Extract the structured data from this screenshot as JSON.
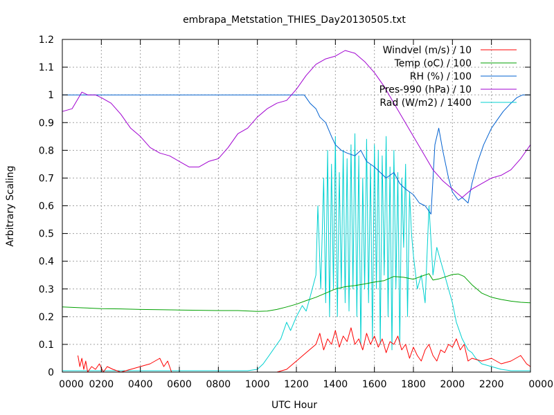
{
  "chart_data": {
    "type": "line",
    "title": "embrapa_Metstation_THIES_Day20130505.txt",
    "xlabel": "UTC Hour",
    "ylabel": "Arbitrary Scaling",
    "xlim": [
      0,
      24
    ],
    "ylim": [
      0,
      1.2
    ],
    "x_tick_labels": [
      "0000",
      "0200",
      "0400",
      "0600",
      "0800",
      "1000",
      "1200",
      "1400",
      "1600",
      "1800",
      "2000",
      "2200",
      "0000"
    ],
    "y_tick_labels": [
      "0",
      "0.1",
      "0.2",
      "0.3",
      "0.4",
      "0.5",
      "0.6",
      "0.7",
      "0.8",
      "0.9",
      "1",
      "1.1",
      "1.2"
    ],
    "grid": true,
    "legend_position": "top-right",
    "series": [
      {
        "name": "Windvel (m/s) / 10",
        "color": "#ff0000",
        "x": [
          0.8,
          0.9,
          1.0,
          1.1,
          1.2,
          1.3,
          1.5,
          1.7,
          1.9,
          2.1,
          2.3,
          2.6,
          3.0,
          3.5,
          4.0,
          4.5,
          5.0,
          5.2,
          5.4,
          5.6,
          6.0,
          10.0,
          11.0,
          11.5,
          12.0,
          12.5,
          13.0,
          13.2,
          13.4,
          13.6,
          13.8,
          14.0,
          14.2,
          14.4,
          14.6,
          14.8,
          15.0,
          15.2,
          15.4,
          15.6,
          15.8,
          16.0,
          16.2,
          16.4,
          16.6,
          16.8,
          17.0,
          17.2,
          17.4,
          17.6,
          17.8,
          18.0,
          18.2,
          18.4,
          18.6,
          18.8,
          19.0,
          19.2,
          19.4,
          19.6,
          19.8,
          20.0,
          20.2,
          20.4,
          20.6,
          20.8,
          21.0,
          21.5,
          22.0,
          22.5,
          23.0,
          23.5,
          23.8,
          24.0
        ],
        "y": [
          0.06,
          0.02,
          0.05,
          0.01,
          0.04,
          0.0,
          0.02,
          0.01,
          0.03,
          0.0,
          0.02,
          0.01,
          0.0,
          0.01,
          0.02,
          0.03,
          0.05,
          0.02,
          0.04,
          0.0,
          0.0,
          0.0,
          0.0,
          0.01,
          0.04,
          0.07,
          0.1,
          0.14,
          0.08,
          0.12,
          0.1,
          0.15,
          0.09,
          0.13,
          0.11,
          0.16,
          0.1,
          0.12,
          0.08,
          0.14,
          0.1,
          0.13,
          0.09,
          0.12,
          0.07,
          0.11,
          0.1,
          0.13,
          0.08,
          0.1,
          0.05,
          0.09,
          0.06,
          0.04,
          0.08,
          0.1,
          0.06,
          0.04,
          0.08,
          0.07,
          0.1,
          0.09,
          0.12,
          0.08,
          0.1,
          0.04,
          0.05,
          0.04,
          0.05,
          0.03,
          0.04,
          0.06,
          0.03,
          0.02
        ]
      },
      {
        "name": "Temp (oC) / 100",
        "color": "#00a000",
        "x": [
          0.0,
          1.0,
          2.0,
          3.0,
          4.0,
          5.0,
          6.0,
          7.0,
          8.0,
          9.0,
          10.0,
          10.5,
          11.0,
          11.5,
          12.0,
          12.5,
          13.0,
          13.5,
          14.0,
          14.5,
          15.0,
          15.5,
          16.0,
          16.5,
          17.0,
          17.5,
          18.0,
          18.5,
          18.8,
          19.0,
          19.3,
          19.7,
          20.0,
          20.3,
          20.6,
          21.0,
          21.5,
          22.0,
          22.5,
          23.0,
          23.5,
          24.0
        ],
        "y": [
          0.235,
          0.232,
          0.229,
          0.228,
          0.226,
          0.225,
          0.224,
          0.223,
          0.222,
          0.222,
          0.219,
          0.22,
          0.226,
          0.235,
          0.245,
          0.258,
          0.27,
          0.285,
          0.3,
          0.308,
          0.312,
          0.318,
          0.325,
          0.33,
          0.345,
          0.342,
          0.335,
          0.348,
          0.355,
          0.332,
          0.336,
          0.345,
          0.352,
          0.354,
          0.345,
          0.315,
          0.285,
          0.27,
          0.262,
          0.256,
          0.252,
          0.25
        ]
      },
      {
        "name": "RH (%) / 100",
        "color": "#0060d0",
        "x": [
          0.0,
          2.0,
          4.0,
          6.0,
          8.0,
          10.0,
          11.0,
          12.0,
          12.4,
          12.7,
          13.0,
          13.2,
          13.5,
          13.8,
          14.0,
          14.3,
          14.6,
          15.0,
          15.3,
          15.6,
          16.0,
          16.3,
          16.6,
          17.0,
          17.3,
          17.6,
          18.0,
          18.3,
          18.6,
          18.9,
          19.1,
          19.3,
          19.5,
          19.8,
          20.0,
          20.3,
          20.5,
          20.8,
          21.0,
          21.3,
          21.6,
          22.0,
          22.3,
          22.6,
          23.0,
          23.3,
          23.6,
          24.0
        ],
        "y": [
          1.0,
          1.0,
          1.0,
          1.0,
          1.0,
          1.0,
          1.0,
          1.0,
          1.0,
          0.97,
          0.95,
          0.92,
          0.9,
          0.85,
          0.82,
          0.8,
          0.79,
          0.78,
          0.8,
          0.76,
          0.74,
          0.72,
          0.7,
          0.72,
          0.68,
          0.66,
          0.64,
          0.61,
          0.6,
          0.57,
          0.82,
          0.88,
          0.8,
          0.7,
          0.65,
          0.62,
          0.63,
          0.61,
          0.68,
          0.76,
          0.82,
          0.88,
          0.91,
          0.94,
          0.97,
          0.99,
          1.0,
          1.0
        ]
      },
      {
        "name": "Pres-990 (hPa) / 10",
        "color": "#a000d0",
        "x": [
          0.0,
          0.5,
          1.0,
          1.3,
          1.7,
          2.0,
          2.5,
          3.0,
          3.5,
          4.0,
          4.5,
          5.0,
          5.5,
          6.0,
          6.5,
          7.0,
          7.5,
          8.0,
          8.5,
          9.0,
          9.5,
          10.0,
          10.5,
          11.0,
          11.5,
          12.0,
          12.5,
          13.0,
          13.5,
          14.0,
          14.5,
          15.0,
          15.5,
          16.0,
          16.5,
          17.0,
          17.5,
          18.0,
          18.5,
          19.0,
          19.5,
          20.0,
          20.5,
          21.0,
          21.5,
          22.0,
          22.5,
          23.0,
          23.5,
          24.0
        ],
        "y": [
          0.94,
          0.95,
          1.01,
          1.0,
          1.0,
          0.99,
          0.97,
          0.93,
          0.88,
          0.85,
          0.81,
          0.79,
          0.78,
          0.76,
          0.74,
          0.74,
          0.76,
          0.77,
          0.81,
          0.86,
          0.88,
          0.92,
          0.95,
          0.97,
          0.98,
          1.02,
          1.07,
          1.11,
          1.13,
          1.14,
          1.16,
          1.15,
          1.12,
          1.08,
          1.03,
          0.97,
          0.91,
          0.85,
          0.79,
          0.73,
          0.69,
          0.66,
          0.63,
          0.66,
          0.68,
          0.7,
          0.71,
          0.73,
          0.77,
          0.82
        ]
      },
      {
        "name": "Rad (W/m2) / 1400",
        "color": "#00d0d0",
        "x": [
          0.0,
          9.5,
          10.0,
          10.3,
          10.6,
          11.0,
          11.2,
          11.5,
          11.7,
          12.0,
          12.3,
          12.5,
          12.7,
          13.0,
          13.1,
          13.25,
          13.4,
          13.5,
          13.6,
          13.7,
          13.8,
          13.9,
          14.0,
          14.1,
          14.2,
          14.3,
          14.4,
          14.5,
          14.6,
          14.7,
          14.8,
          14.9,
          15.0,
          15.1,
          15.2,
          15.3,
          15.4,
          15.5,
          15.6,
          15.7,
          15.8,
          15.9,
          16.0,
          16.1,
          16.2,
          16.3,
          16.4,
          16.5,
          16.6,
          16.7,
          16.8,
          16.9,
          17.0,
          17.1,
          17.2,
          17.3,
          17.4,
          17.5,
          17.6,
          17.7,
          17.8,
          17.9,
          18.0,
          18.2,
          18.4,
          18.6,
          18.8,
          19.0,
          19.2,
          19.4,
          19.6,
          19.8,
          20.0,
          20.2,
          20.5,
          20.8,
          21.0,
          21.2,
          21.5,
          22.0,
          22.5,
          23.0,
          23.5,
          24.0
        ],
        "y": [
          0.005,
          0.005,
          0.01,
          0.03,
          0.06,
          0.1,
          0.12,
          0.18,
          0.15,
          0.2,
          0.24,
          0.22,
          0.27,
          0.35,
          0.6,
          0.3,
          0.7,
          0.25,
          0.8,
          0.2,
          0.75,
          0.3,
          0.85,
          0.2,
          0.72,
          0.3,
          0.8,
          0.25,
          0.77,
          0.22,
          0.82,
          0.3,
          0.86,
          0.2,
          0.78,
          0.1,
          0.7,
          0.3,
          0.84,
          0.25,
          0.75,
          0.12,
          0.82,
          0.3,
          0.8,
          0.1,
          0.78,
          0.35,
          0.85,
          0.2,
          0.74,
          0.08,
          0.8,
          0.3,
          0.72,
          0.1,
          0.7,
          0.45,
          0.75,
          0.2,
          0.65,
          0.5,
          0.42,
          0.3,
          0.35,
          0.25,
          0.6,
          0.35,
          0.45,
          0.4,
          0.35,
          0.3,
          0.25,
          0.18,
          0.12,
          0.08,
          0.07,
          0.05,
          0.03,
          0.02,
          0.01,
          0.005,
          0.005,
          0.005
        ]
      }
    ]
  }
}
